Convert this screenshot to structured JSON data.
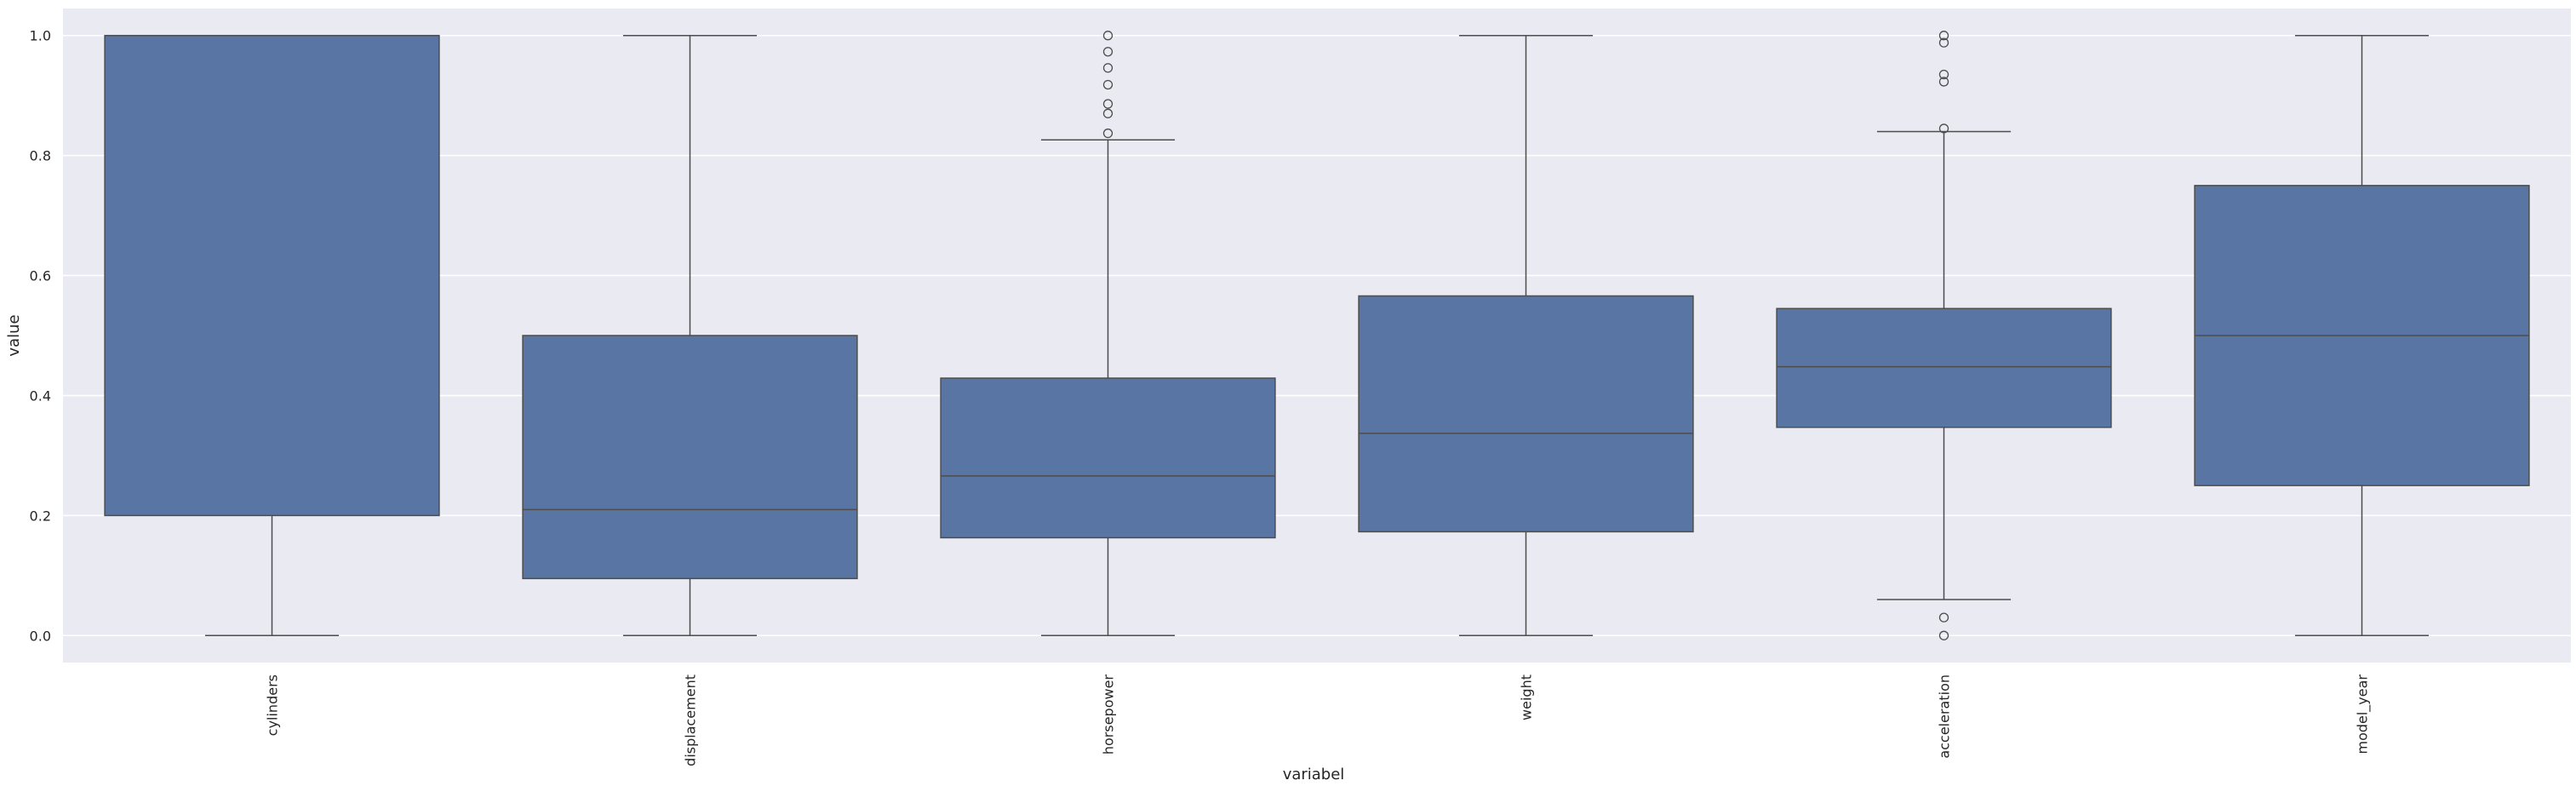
{
  "chart_data": {
    "type": "box",
    "title": "",
    "xlabel": "variabel",
    "ylabel": "value",
    "ylim": [
      -0.045,
      1.045
    ],
    "yticks": [
      "0.0",
      "0.2",
      "0.4",
      "0.6",
      "0.8",
      "1.0"
    ],
    "grid": true,
    "box_color": "#5875a4",
    "background_color": "#eaeaf2",
    "grid_color": "#ffffff",
    "line_color": "#4d4d4d",
    "categories": [
      "cylinders",
      "displacement",
      "horsepower",
      "weight",
      "acceleration",
      "model_year"
    ],
    "boxes": [
      {
        "category": "cylinders",
        "whisker_low": 0.0,
        "q1": 0.2,
        "median": 1.0,
        "q3": 1.0,
        "whisker_high": 1.0,
        "outliers": []
      },
      {
        "category": "displacement",
        "whisker_low": 0.0,
        "q1": 0.095,
        "median": 0.21,
        "q3": 0.5,
        "whisker_high": 1.0,
        "outliers": []
      },
      {
        "category": "horsepower",
        "whisker_low": 0.0,
        "q1": 0.163,
        "median": 0.266,
        "q3": 0.429,
        "whisker_high": 0.826,
        "outliers": [
          0.837,
          0.87,
          0.886,
          0.918,
          0.946,
          0.973,
          1.0
        ]
      },
      {
        "category": "weight",
        "whisker_low": 0.0,
        "q1": 0.173,
        "median": 0.337,
        "q3": 0.566,
        "whisker_high": 1.0,
        "outliers": []
      },
      {
        "category": "acceleration",
        "whisker_low": 0.06,
        "q1": 0.347,
        "median": 0.448,
        "q3": 0.545,
        "whisker_high": 0.84,
        "outliers": [
          0.0,
          0.03,
          0.845,
          0.923,
          0.935,
          0.988,
          1.0
        ]
      },
      {
        "category": "model_year",
        "whisker_low": 0.0,
        "q1": 0.25,
        "median": 0.5,
        "q3": 0.75,
        "whisker_high": 1.0,
        "outliers": []
      }
    ]
  }
}
